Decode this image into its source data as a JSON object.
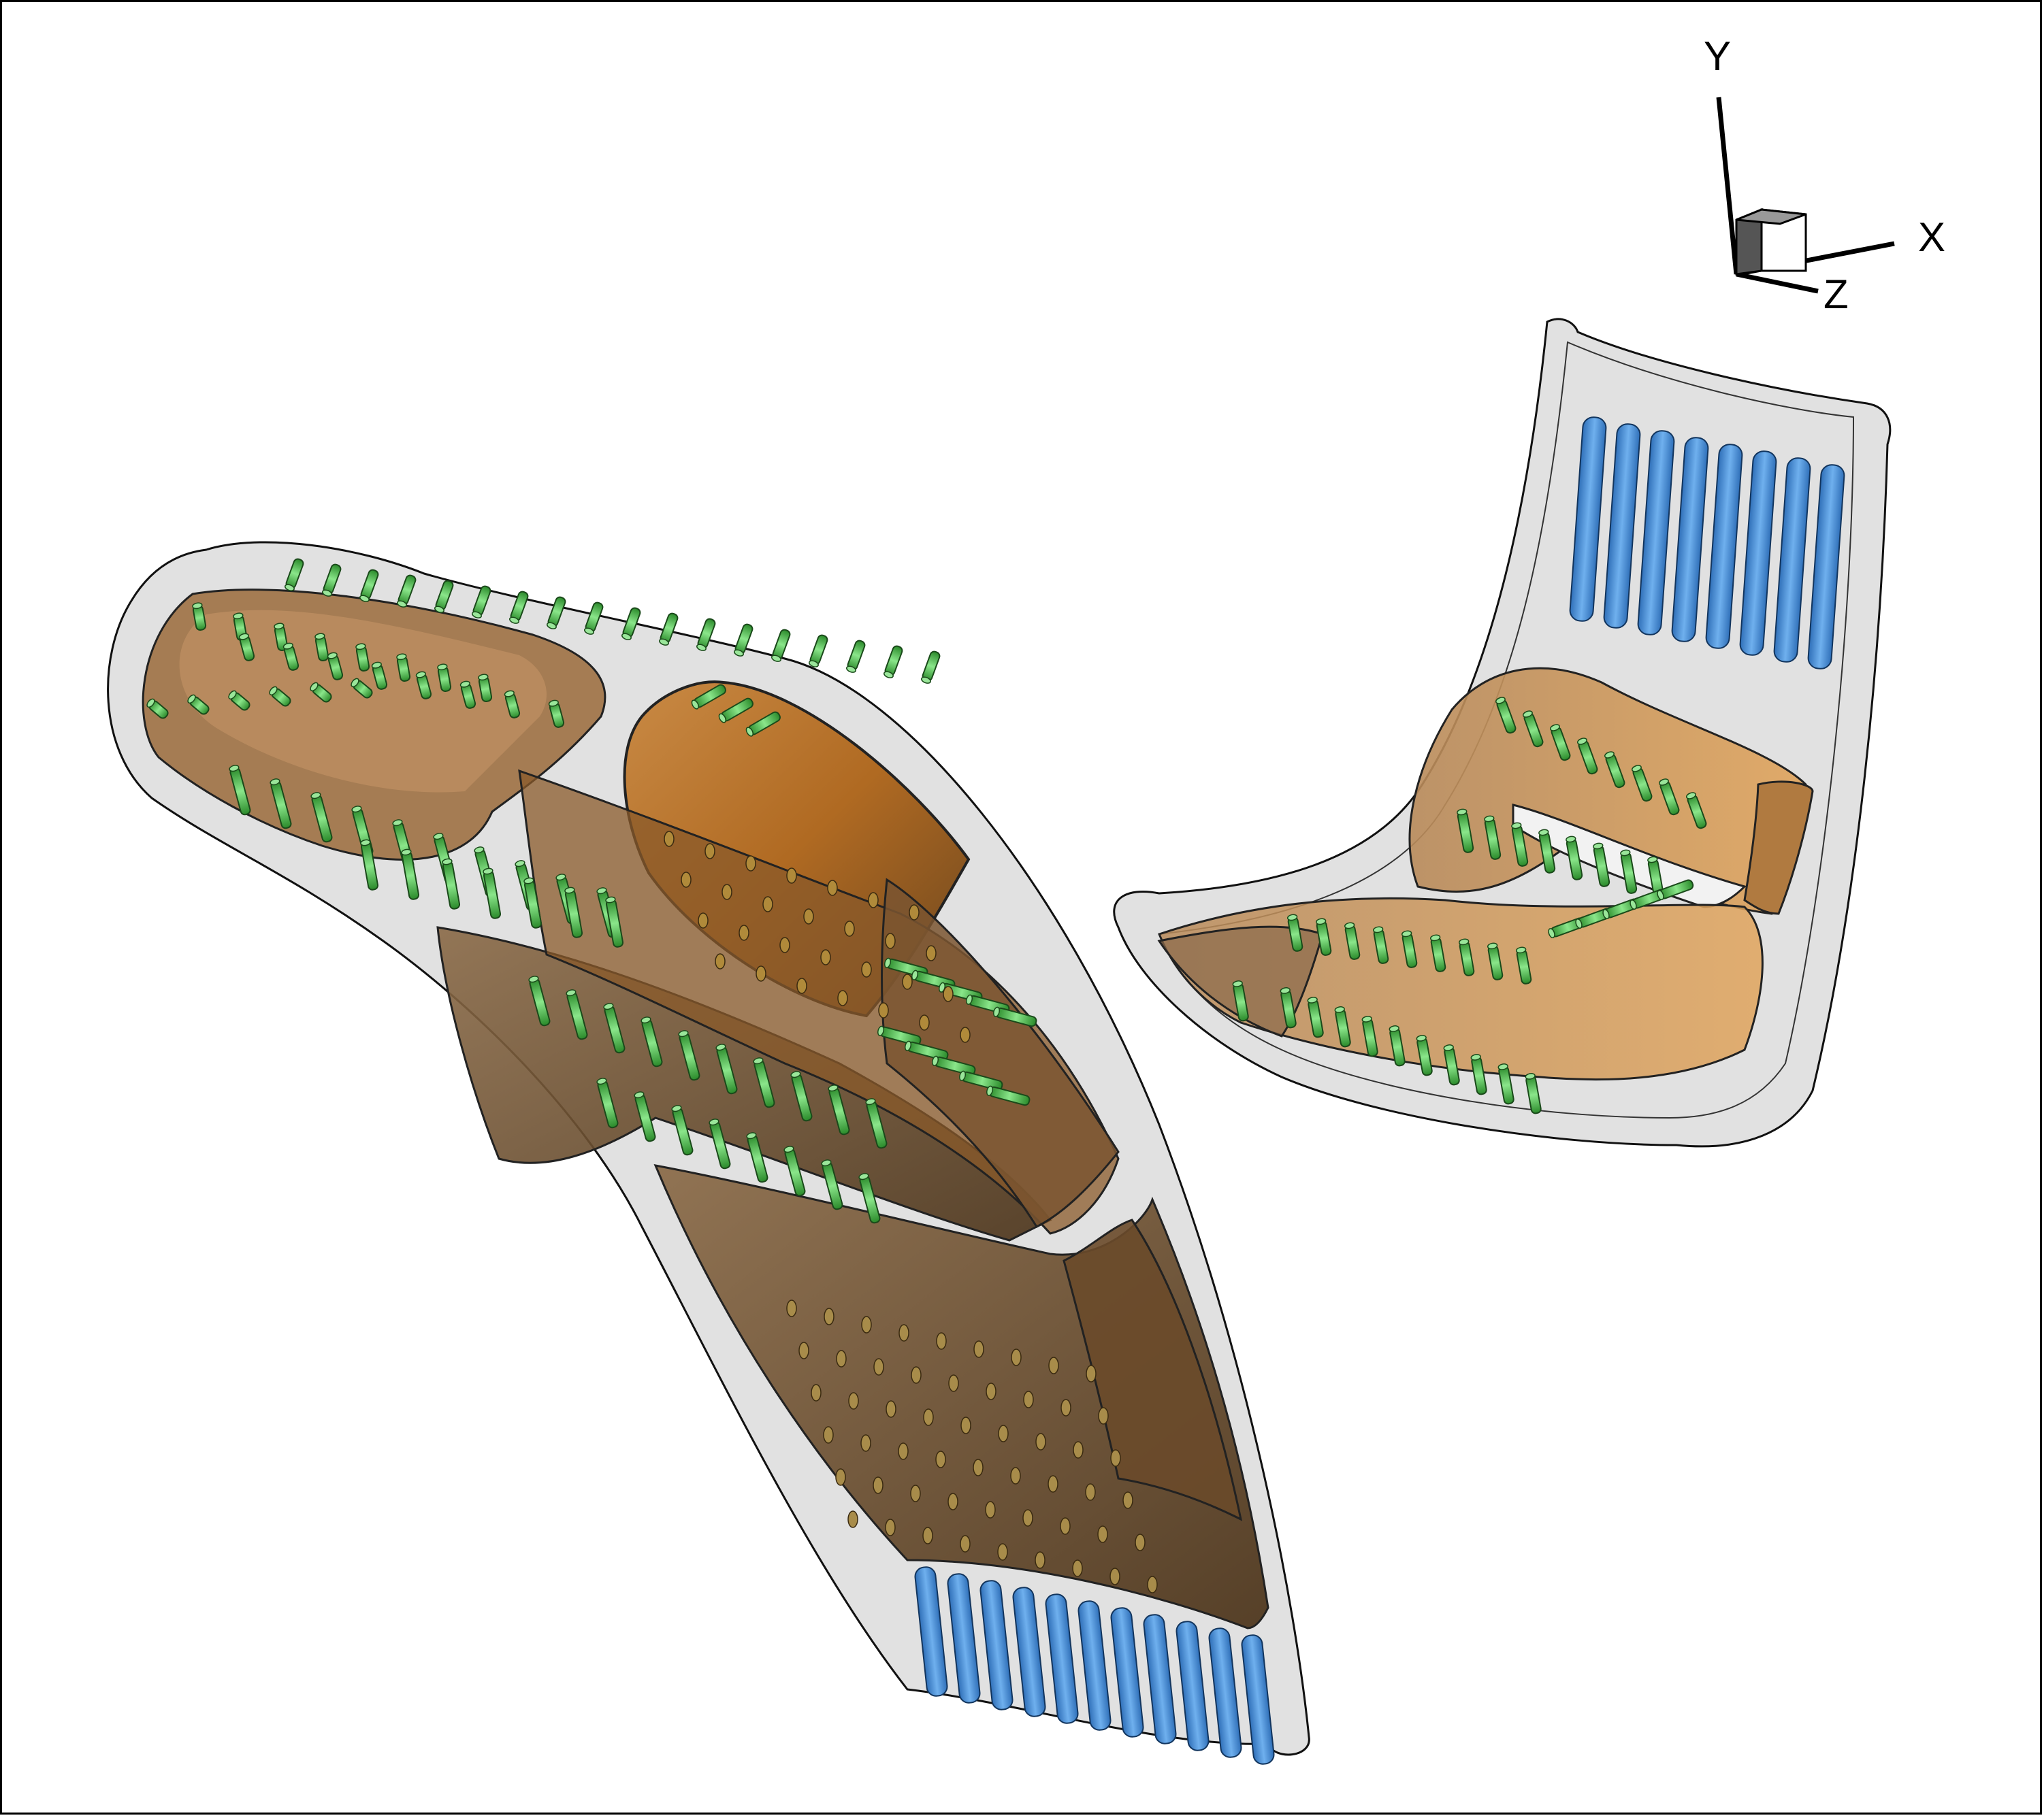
{
  "axis_triad": {
    "x_label": "X",
    "y_label": "Y",
    "z_label": "Z"
  },
  "colors": {
    "shell_fill": "#d7d7d7",
    "shell_stroke": "#111111",
    "cavity_dark": "#6b4a26",
    "cavity_mid": "#8a5e2e",
    "cavity_orange": "#b8722a",
    "cavity_light": "#d79a55",
    "film_hole_green": "#3fbf3f",
    "pin_fin_blue": "#3f8fdf",
    "background": "#ffffff"
  },
  "icons": [
    "film-cooling-hole-icon",
    "pin-fin-icon",
    "axis-cube-icon"
  ]
}
